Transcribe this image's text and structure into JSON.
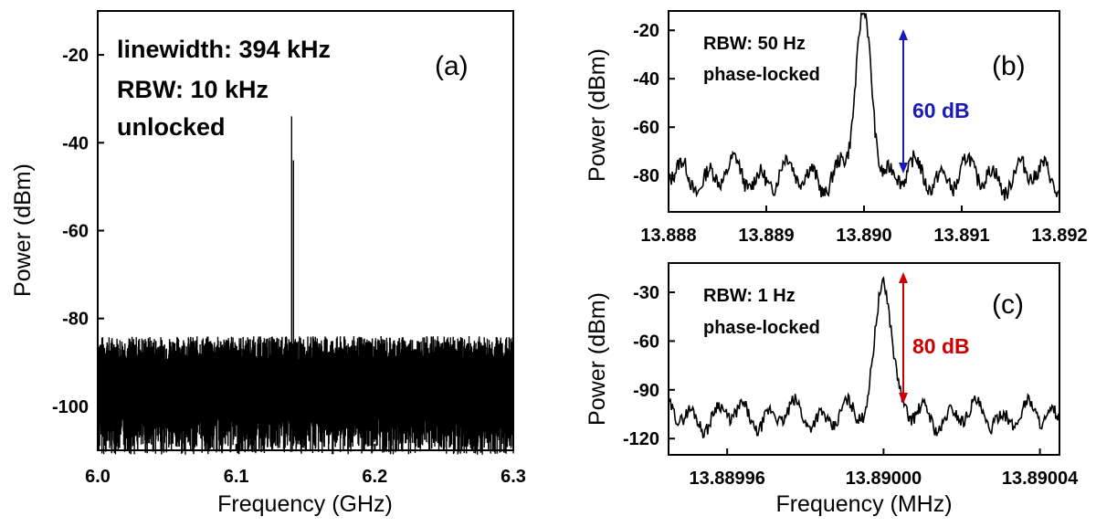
{
  "chart_data": [
    {
      "panel_label": "(a)",
      "type": "line",
      "xlabel": "Frequency (GHz)",
      "ylabel": "Power (dBm)",
      "xlim": [
        6.0,
        6.3
      ],
      "ylim": [
        -110,
        -10
      ],
      "xticks": [
        "6.0",
        "6.1",
        "6.2",
        "6.3"
      ],
      "yticks": [
        "-20",
        "-40",
        "-60",
        "-80",
        "-100"
      ],
      "annotations": [
        "linewidth: 394 kHz",
        "RBW: 10 kHz",
        "unlocked"
      ],
      "noise_floor_dBm": [
        -106,
        -87
      ],
      "peak": {
        "x": 6.14,
        "y": -34
      }
    },
    {
      "panel_label": "(b)",
      "type": "line",
      "xlabel": "",
      "ylabel": "Power (dBm)",
      "xlim": [
        13.888,
        13.892
      ],
      "ylim": [
        -95,
        -12
      ],
      "xticks": [
        "13.888",
        "13.889",
        "13.890",
        "13.891",
        "13.892"
      ],
      "yticks": [
        "-20",
        "-40",
        "-60",
        "-80"
      ],
      "annotations": [
        "RBW: 50 Hz",
        "phase-locked"
      ],
      "arrow_label": "60 dB",
      "arrow_color": "#1a1ab8",
      "peak": {
        "x": 13.89,
        "y": -16
      },
      "noise_floor_dBm": [
        -92,
        -66
      ]
    },
    {
      "panel_label": "(c)",
      "type": "line",
      "xlabel": "Frequency (MHz)",
      "ylabel": "Power (dBm)",
      "xlim": [
        13.889945,
        13.890045
      ],
      "ylim": [
        -130,
        -12
      ],
      "xticks": [
        "13.88996",
        "13.89000",
        "13.89004"
      ],
      "yticks": [
        "-30",
        "-60",
        "-90",
        "-120"
      ],
      "annotations": [
        "RBW: 1 Hz",
        "phase-locked"
      ],
      "arrow_label": "80 dB",
      "arrow_color": "#cc0000",
      "peak": {
        "x": 13.89,
        "y": -16
      },
      "noise_floor_dBm": [
        -128,
        -92
      ]
    }
  ]
}
